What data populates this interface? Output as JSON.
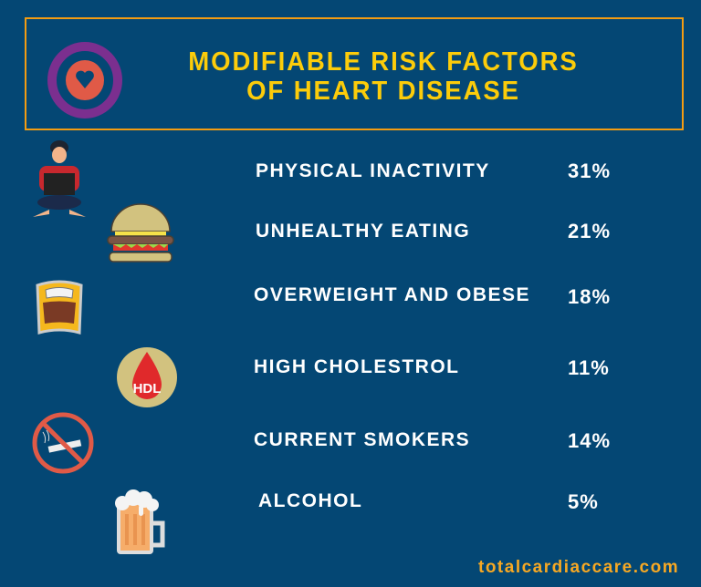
{
  "header": {
    "title_line1": "MODIFIABLE RISK FACTORS",
    "title_line2": "OF HEART DISEASE",
    "icon": "heart-target-icon"
  },
  "risk_factors": [
    {
      "label": "PHYSICAL INACTIVITY",
      "percent": "31%",
      "icon": "person-laptop-icon"
    },
    {
      "label": "UNHEALTHY EATING",
      "percent": "21%",
      "icon": "burger-icon"
    },
    {
      "label": "OVERWEIGHT AND OBESE",
      "percent": "18%",
      "icon": "weight-scale-icon"
    },
    {
      "label": "HIGH CHOLESTROL",
      "percent": "11%",
      "icon": "hdl-blood-drop-icon",
      "icon_text": "HDL"
    },
    {
      "label": "CURRENT SMOKERS",
      "percent": "14%",
      "icon": "no-smoking-icon"
    },
    {
      "label": "ALCOHOL",
      "percent": "5%",
      "icon": "beer-mug-icon"
    }
  ],
  "footer": {
    "website": "totalcardiaccare.com"
  },
  "colors": {
    "background": "#044774",
    "title": "#fccc0a",
    "border": "#f39c12",
    "footer": "#f7a823",
    "text": "#ffffff"
  }
}
